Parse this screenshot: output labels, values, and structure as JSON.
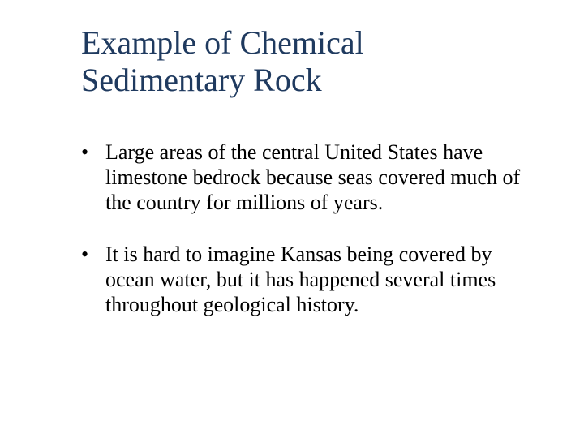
{
  "slide": {
    "title": "Example of Chemical Sedimentary Rock",
    "title_color": "#1f3a5f",
    "title_fontsize": 40,
    "background_color": "#ffffff",
    "body_color": "#000000",
    "body_fontsize": 26,
    "bullets": [
      "Large areas of the central United States have limestone bedrock because seas covered much of the country for millions of years.",
      "It is hard to imagine Kansas being covered by ocean water, but it has happened several times throughout geological history."
    ]
  }
}
